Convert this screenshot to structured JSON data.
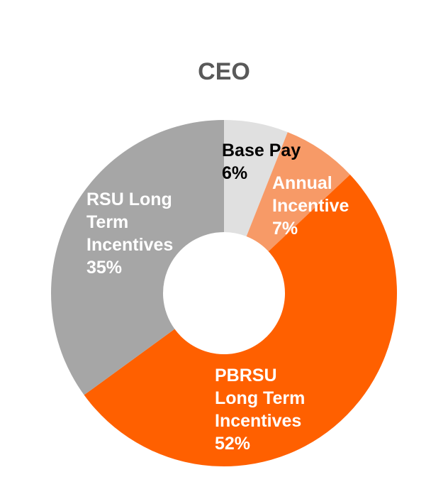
{
  "chart_data": {
    "type": "pie",
    "variant": "donut",
    "title": "CEO",
    "slices": [
      {
        "label_lines": [
          "Base Pay",
          "6%"
        ],
        "value": 6,
        "color": "#e0e0e0",
        "label_color": "#000000"
      },
      {
        "label_lines": [
          "Annual",
          "Incentive",
          "7%"
        ],
        "value": 7,
        "color": "#f79a67",
        "label_color": "#ffffff"
      },
      {
        "label_lines": [
          "PBRSU",
          "Long Term",
          "Incentives",
          "52%"
        ],
        "value": 52,
        "color": "#ff6000",
        "label_color": "#ffffff"
      },
      {
        "label_lines": [
          "RSU Long",
          "Term",
          "Incentives",
          "35%"
        ],
        "value": 35,
        "color": "#a6a6a6",
        "label_color": "#ffffff"
      }
    ]
  }
}
